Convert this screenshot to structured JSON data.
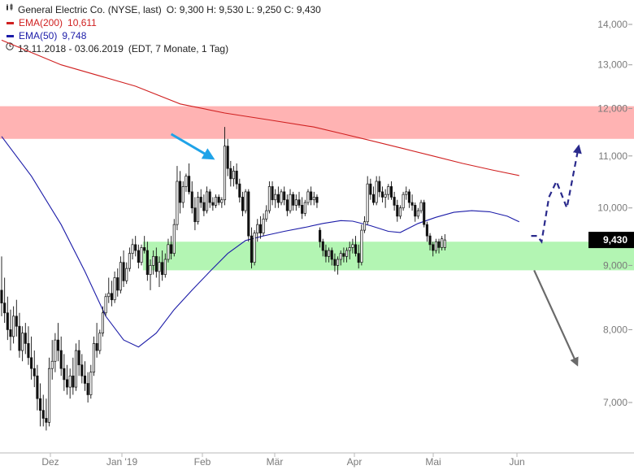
{
  "legend": {
    "title": "General Electric Co. (NYSE, last)",
    "ohlc": "O: 9,300  H: 9,530  L: 9,250  C: 9,430",
    "ema200_label": "EMA(200)",
    "ema200_value": "10,611",
    "ema50_label": "EMA(50)",
    "ema50_value": "9,748",
    "period": "13.11.2018 - 03.06.2019",
    "period_info": "(EDT, 7 Monate, 1 Tag)"
  },
  "colors": {
    "ema200": "#d02020",
    "ema50": "#1c1ca8",
    "resistance_zone": "#ffb3b3",
    "support_zone": "#b3f5b3",
    "blue_arrow": "#1fa3e8",
    "up_projection": "#2a2a8c",
    "down_projection": "#6a6a6a",
    "last_price_tag": "#000000"
  },
  "chart_data": {
    "type": "candlestick",
    "y_scale": "log",
    "ylim": [
      6500,
      14400
    ],
    "y_ticks": [
      "14,000",
      "13,000",
      "12,000",
      "11,000",
      "10,000",
      "9,000",
      "8,000",
      "7,000"
    ],
    "x_ticks": [
      "Dez",
      "Jan '19",
      "Feb",
      "Mär",
      "Apr",
      "Mai",
      "Jun"
    ],
    "last_price": "9,430",
    "zones": [
      {
        "name": "resistance",
        "from": 11350,
        "to": 12050
      },
      {
        "name": "support",
        "from": 8920,
        "to": 9400
      }
    ],
    "candles": [
      [
        8600,
        9150,
        8200,
        8400
      ],
      [
        8400,
        8800,
        8100,
        8250
      ],
      [
        8250,
        8500,
        7850,
        8000
      ],
      [
        8000,
        8300,
        7700,
        7900
      ],
      [
        7900,
        8350,
        7800,
        8200
      ],
      [
        8200,
        8450,
        7900,
        8050
      ],
      [
        8050,
        8250,
        7600,
        7700
      ],
      [
        7700,
        8050,
        7550,
        7950
      ],
      [
        7950,
        8100,
        7650,
        7800
      ],
      [
        7800,
        8050,
        7500,
        7600
      ],
      [
        7600,
        7900,
        7300,
        7450
      ],
      [
        7450,
        7700,
        7200,
        7350
      ],
      [
        7350,
        7500,
        6900,
        7050
      ],
      [
        7050,
        7250,
        6700,
        6900
      ],
      [
        6900,
        7100,
        6700,
        6800
      ],
      [
        6800,
        7050,
        6650,
        6750
      ],
      [
        6750,
        7600,
        6700,
        7450
      ],
      [
        7450,
        7850,
        7300,
        7550
      ],
      [
        7550,
        7950,
        7400,
        7850
      ],
      [
        7850,
        8100,
        7550,
        7700
      ],
      [
        7700,
        7900,
        7350,
        7450
      ],
      [
        7450,
        7650,
        7150,
        7300
      ],
      [
        7300,
        7500,
        7100,
        7200
      ],
      [
        7200,
        7450,
        7050,
        7350
      ],
      [
        7350,
        7600,
        7100,
        7200
      ],
      [
        7200,
        7800,
        7150,
        7700
      ],
      [
        7700,
        7850,
        7350,
        7500
      ],
      [
        7500,
        7650,
        7250,
        7350
      ],
      [
        7350,
        7550,
        7150,
        7250
      ],
      [
        7250,
        7400,
        7000,
        7100
      ],
      [
        7100,
        7500,
        7050,
        7400
      ],
      [
        7400,
        7900,
        7350,
        7800
      ],
      [
        7800,
        8100,
        7600,
        7700
      ],
      [
        7700,
        8000,
        7650,
        7950
      ],
      [
        7950,
        8350,
        7900,
        8250
      ],
      [
        8250,
        8550,
        8200,
        8500
      ],
      [
        8500,
        8800,
        8400,
        8550
      ],
      [
        8550,
        8750,
        8350,
        8450
      ],
      [
        8450,
        8900,
        8400,
        8800
      ],
      [
        8800,
        8950,
        8500,
        8600
      ],
      [
        8600,
        9150,
        8550,
        9050
      ],
      [
        9050,
        9250,
        8650,
        8750
      ],
      [
        8750,
        9050,
        8700,
        8950
      ],
      [
        8950,
        9300,
        8900,
        9200
      ],
      [
        9200,
        9450,
        9100,
        9350
      ],
      [
        9350,
        9500,
        9150,
        9250
      ],
      [
        9250,
        9350,
        8950,
        9050
      ],
      [
        9050,
        9350,
        9000,
        9300
      ],
      [
        9300,
        9500,
        9200,
        9250
      ],
      [
        9250,
        9400,
        8750,
        8850
      ],
      [
        8850,
        9100,
        8600,
        9000
      ],
      [
        9000,
        9250,
        8850,
        9150
      ],
      [
        9150,
        9300,
        8800,
        8900
      ],
      [
        8900,
        9150,
        8650,
        9050
      ],
      [
        9050,
        9250,
        8750,
        8850
      ],
      [
        8850,
        9200,
        8800,
        9100
      ],
      [
        9100,
        9450,
        9050,
        9350
      ],
      [
        9350,
        9500,
        9100,
        9200
      ],
      [
        9200,
        9800,
        9150,
        9700
      ],
      [
        9700,
        10800,
        9600,
        10500
      ],
      [
        10500,
        10700,
        9900,
        10100
      ],
      [
        10100,
        10500,
        10000,
        10400
      ],
      [
        10400,
        10650,
        10300,
        10600
      ],
      [
        10600,
        10850,
        10250,
        10300
      ],
      [
        10300,
        10500,
        9900,
        10000
      ],
      [
        10000,
        10200,
        9600,
        9750
      ],
      [
        9750,
        10300,
        9700,
        10200
      ],
      [
        10200,
        10350,
        10000,
        10100
      ],
      [
        10100,
        10250,
        9850,
        9950
      ],
      [
        9950,
        10400,
        9900,
        10300
      ],
      [
        10300,
        10350,
        10000,
        10100
      ],
      [
        10100,
        10200,
        9950,
        10050
      ],
      [
        10050,
        10250,
        10000,
        10200
      ],
      [
        10200,
        10250,
        10050,
        10100
      ],
      [
        10100,
        10200,
        10000,
        10150
      ],
      [
        10150,
        11600,
        10050,
        11200
      ],
      [
        11200,
        11350,
        10600,
        10750
      ],
      [
        10750,
        10900,
        10400,
        10550
      ],
      [
        10550,
        10800,
        10400,
        10700
      ],
      [
        10700,
        10850,
        10350,
        10450
      ],
      [
        10450,
        10550,
        10100,
        10200
      ],
      [
        10200,
        10300,
        9850,
        9950
      ],
      [
        9950,
        10350,
        9900,
        10300
      ],
      [
        10300,
        10350,
        9400,
        9500
      ],
      [
        9500,
        9650,
        8950,
        9050
      ],
      [
        9050,
        9600,
        9000,
        9550
      ],
      [
        9550,
        9800,
        9400,
        9700
      ],
      [
        9700,
        9850,
        9450,
        9550
      ],
      [
        9550,
        9900,
        9500,
        9800
      ],
      [
        9800,
        10050,
        9750,
        9950
      ],
      [
        9950,
        10500,
        9900,
        10400
      ],
      [
        10400,
        10500,
        10050,
        10150
      ],
      [
        10150,
        10350,
        10000,
        10250
      ],
      [
        10250,
        10400,
        10000,
        10100
      ],
      [
        10100,
        10350,
        10050,
        10300
      ],
      [
        10300,
        10400,
        10050,
        10150
      ],
      [
        10150,
        10250,
        9850,
        9950
      ],
      [
        9950,
        10350,
        9900,
        10250
      ],
      [
        10250,
        10300,
        9950,
        10050
      ],
      [
        10050,
        10250,
        9950,
        10150
      ],
      [
        10150,
        10300,
        10000,
        10050
      ],
      [
        10050,
        10200,
        9800,
        9900
      ],
      [
        9900,
        10150,
        9850,
        10100
      ],
      [
        10100,
        10350,
        10050,
        10300
      ],
      [
        10300,
        10400,
        10050,
        10150
      ],
      [
        10150,
        10300,
        10050,
        10200
      ],
      [
        10200,
        10250,
        10000,
        10100
      ],
      [
        9600,
        9650,
        9300,
        9400
      ],
      [
        9400,
        9450,
        9150,
        9250
      ],
      [
        9250,
        9350,
        9050,
        9150
      ],
      [
        9150,
        9300,
        9050,
        9250
      ],
      [
        9250,
        9300,
        9000,
        9100
      ],
      [
        9100,
        9200,
        8900,
        9000
      ],
      [
        9000,
        9150,
        8850,
        9100
      ],
      [
        9100,
        9250,
        9000,
        9200
      ],
      [
        9200,
        9300,
        9050,
        9150
      ],
      [
        9150,
        9300,
        9050,
        9250
      ],
      [
        9250,
        9400,
        9100,
        9300
      ],
      [
        9300,
        9450,
        9200,
        9350
      ],
      [
        9350,
        9500,
        9150,
        9200
      ],
      [
        9200,
        9350,
        8950,
        9050
      ],
      [
        9050,
        9700,
        9000,
        9600
      ],
      [
        9600,
        9850,
        9550,
        9750
      ],
      [
        9750,
        10600,
        9700,
        10450
      ],
      [
        10450,
        10550,
        10150,
        10250
      ],
      [
        10250,
        10400,
        10050,
        10100
      ],
      [
        10100,
        10600,
        10050,
        10500
      ],
      [
        10500,
        10600,
        10200,
        10300
      ],
      [
        10300,
        10400,
        10100,
        10200
      ],
      [
        10200,
        10350,
        10000,
        10250
      ],
      [
        10250,
        10450,
        10150,
        10400
      ],
      [
        10400,
        10500,
        10150,
        10200
      ],
      [
        10200,
        10300,
        9950,
        10050
      ],
      [
        10050,
        10150,
        9750,
        9850
      ],
      [
        9850,
        10050,
        9800,
        10000
      ],
      [
        10000,
        10300,
        9950,
        10250
      ],
      [
        10250,
        10400,
        10150,
        10300
      ],
      [
        10300,
        10350,
        10000,
        10100
      ],
      [
        10100,
        10250,
        9950,
        10050
      ],
      [
        10050,
        10100,
        9750,
        9850
      ],
      [
        9850,
        10000,
        9800,
        9950
      ],
      [
        9950,
        10150,
        9900,
        10100
      ],
      [
        10100,
        10150,
        9650,
        9700
      ],
      [
        9700,
        9750,
        9400,
        9500
      ],
      [
        9500,
        9550,
        9250,
        9350
      ],
      [
        9350,
        9400,
        9150,
        9250
      ],
      [
        9250,
        9450,
        9200,
        9400
      ],
      [
        9400,
        9450,
        9200,
        9300
      ],
      [
        9300,
        9500,
        9250,
        9450
      ],
      [
        9300,
        9530,
        9250,
        9430
      ]
    ],
    "ema200": [
      [
        0,
        13600
      ],
      [
        20,
        13000
      ],
      [
        45,
        12500
      ],
      [
        60,
        12100
      ],
      [
        75,
        11900
      ],
      [
        90,
        11750
      ],
      [
        105,
        11600
      ],
      [
        115,
        11450
      ],
      [
        125,
        11300
      ],
      [
        135,
        11150
      ],
      [
        145,
        11000
      ],
      [
        155,
        10850
      ],
      [
        165,
        10720
      ],
      [
        174,
        10611
      ]
    ],
    "ema50": [
      [
        0,
        11400
      ],
      [
        10,
        10600
      ],
      [
        20,
        9700
      ],
      [
        28,
        8900
      ],
      [
        35,
        8200
      ],
      [
        41,
        7850
      ],
      [
        46,
        7750
      ],
      [
        52,
        7950
      ],
      [
        58,
        8300
      ],
      [
        64,
        8600
      ],
      [
        70,
        8900
      ],
      [
        76,
        9200
      ],
      [
        82,
        9420
      ],
      [
        88,
        9500
      ],
      [
        95,
        9580
      ],
      [
        102,
        9650
      ],
      [
        108,
        9720
      ],
      [
        114,
        9770
      ],
      [
        118,
        9760
      ],
      [
        124,
        9680
      ],
      [
        130,
        9580
      ],
      [
        134,
        9560
      ],
      [
        140,
        9720
      ],
      [
        146,
        9830
      ],
      [
        152,
        9920
      ],
      [
        158,
        9950
      ],
      [
        164,
        9930
      ],
      [
        170,
        9850
      ],
      [
        174,
        9748
      ]
    ],
    "projection_up": [
      [
        178,
        9500
      ],
      [
        180,
        9500
      ],
      [
        181.5,
        9400
      ],
      [
        184,
        10200
      ],
      [
        186.5,
        10500
      ],
      [
        190,
        10000
      ],
      [
        194,
        11200
      ]
    ],
    "projection_down": [
      [
        179,
        8920
      ],
      [
        193.5,
        7500
      ]
    ],
    "annotation_arrow": [
      [
        57,
        11450
      ],
      [
        71,
        10950
      ]
    ]
  }
}
